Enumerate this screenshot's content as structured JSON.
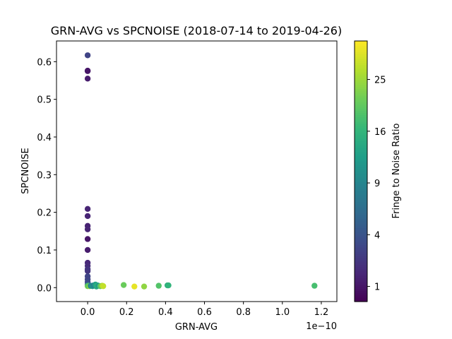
{
  "chart_data": {
    "type": "scatter",
    "title": "GRN-AVG vs SPCNOISE (2018-07-14 to 2019-04-26)",
    "xlabel": "GRN-AVG",
    "ylabel": "SPCNOISE",
    "x_offset_label": "1e−10",
    "xlim": [
      -0.16,
      1.28
    ],
    "ylim": [
      -0.037,
      0.655
    ],
    "x_ticks": [
      0.0,
      0.2,
      0.4,
      0.6,
      0.8,
      1.0,
      1.2
    ],
    "x_tick_labels": [
      "0.0",
      "0.2",
      "0.4",
      "0.6",
      "0.8",
      "1.0",
      "1.2"
    ],
    "y_ticks": [
      0.0,
      0.1,
      0.2,
      0.3,
      0.4,
      0.5,
      0.6
    ],
    "y_tick_labels": [
      "0.0",
      "0.1",
      "0.2",
      "0.3",
      "0.4",
      "0.5",
      "0.6"
    ],
    "grid": false,
    "colorbar": {
      "label": "Fringe to Noise Ratio",
      "colormap": "viridis",
      "scale": "sqrt",
      "range": [
        0.5,
        33
      ],
      "ticks": [
        1,
        4,
        9,
        16,
        25
      ],
      "tick_labels": [
        "1",
        "4",
        "9",
        "16",
        "25"
      ]
    },
    "points": [
      {
        "x": 0.0,
        "y": 0.617,
        "c": 3.0
      },
      {
        "x": 0.0,
        "y": 0.576,
        "c": 1.0
      },
      {
        "x": 0.0,
        "y": 0.575,
        "c": 1.0
      },
      {
        "x": 0.0,
        "y": 0.555,
        "c": 1.2
      },
      {
        "x": 0.0,
        "y": 0.209,
        "c": 1.5
      },
      {
        "x": 0.0,
        "y": 0.19,
        "c": 1.5
      },
      {
        "x": 0.0,
        "y": 0.164,
        "c": 1.4
      },
      {
        "x": 0.0,
        "y": 0.155,
        "c": 1.5
      },
      {
        "x": 0.0,
        "y": 0.129,
        "c": 1.0
      },
      {
        "x": 0.0,
        "y": 0.1,
        "c": 1.2
      },
      {
        "x": 0.0,
        "y": 0.066,
        "c": 1.6
      },
      {
        "x": 0.0,
        "y": 0.058,
        "c": 1.8
      },
      {
        "x": 0.0,
        "y": 0.049,
        "c": 2.2
      },
      {
        "x": 0.0,
        "y": 0.044,
        "c": 2.2
      },
      {
        "x": 0.0,
        "y": 0.03,
        "c": 3.0
      },
      {
        "x": 0.0,
        "y": 0.022,
        "c": 3.0
      },
      {
        "x": 0.0,
        "y": 0.015,
        "c": 3.3
      },
      {
        "x": 0.0,
        "y": 0.008,
        "c": 4.0
      },
      {
        "x": 0.0,
        "y": 0.005,
        "c": 12.0
      },
      {
        "x": 0.0,
        "y": 0.004,
        "c": 22.0
      },
      {
        "x": 0.005,
        "y": 0.005,
        "c": 18.0
      },
      {
        "x": 0.01,
        "y": 0.004,
        "c": 25.0
      },
      {
        "x": 0.015,
        "y": 0.005,
        "c": 9.0
      },
      {
        "x": 0.025,
        "y": 0.004,
        "c": 11.0
      },
      {
        "x": 0.03,
        "y": 0.006,
        "c": 9.0
      },
      {
        "x": 0.04,
        "y": 0.008,
        "c": 13.0
      },
      {
        "x": 0.045,
        "y": 0.003,
        "c": 14.0
      },
      {
        "x": 0.05,
        "y": 0.006,
        "c": 16.0
      },
      {
        "x": 0.055,
        "y": 0.005,
        "c": 12.0
      },
      {
        "x": 0.065,
        "y": 0.004,
        "c": 20.0
      },
      {
        "x": 0.075,
        "y": 0.005,
        "c": 26.0
      },
      {
        "x": 0.08,
        "y": 0.004,
        "c": 28.0
      },
      {
        "x": 0.185,
        "y": 0.007,
        "c": 21.0
      },
      {
        "x": 0.24,
        "y": 0.003,
        "c": 31.0
      },
      {
        "x": 0.29,
        "y": 0.003,
        "c": 24.0
      },
      {
        "x": 0.365,
        "y": 0.005,
        "c": 19.0
      },
      {
        "x": 0.41,
        "y": 0.006,
        "c": 15.0
      },
      {
        "x": 0.415,
        "y": 0.006,
        "c": 16.0
      },
      {
        "x": 1.165,
        "y": 0.005,
        "c": 18.0
      }
    ]
  }
}
